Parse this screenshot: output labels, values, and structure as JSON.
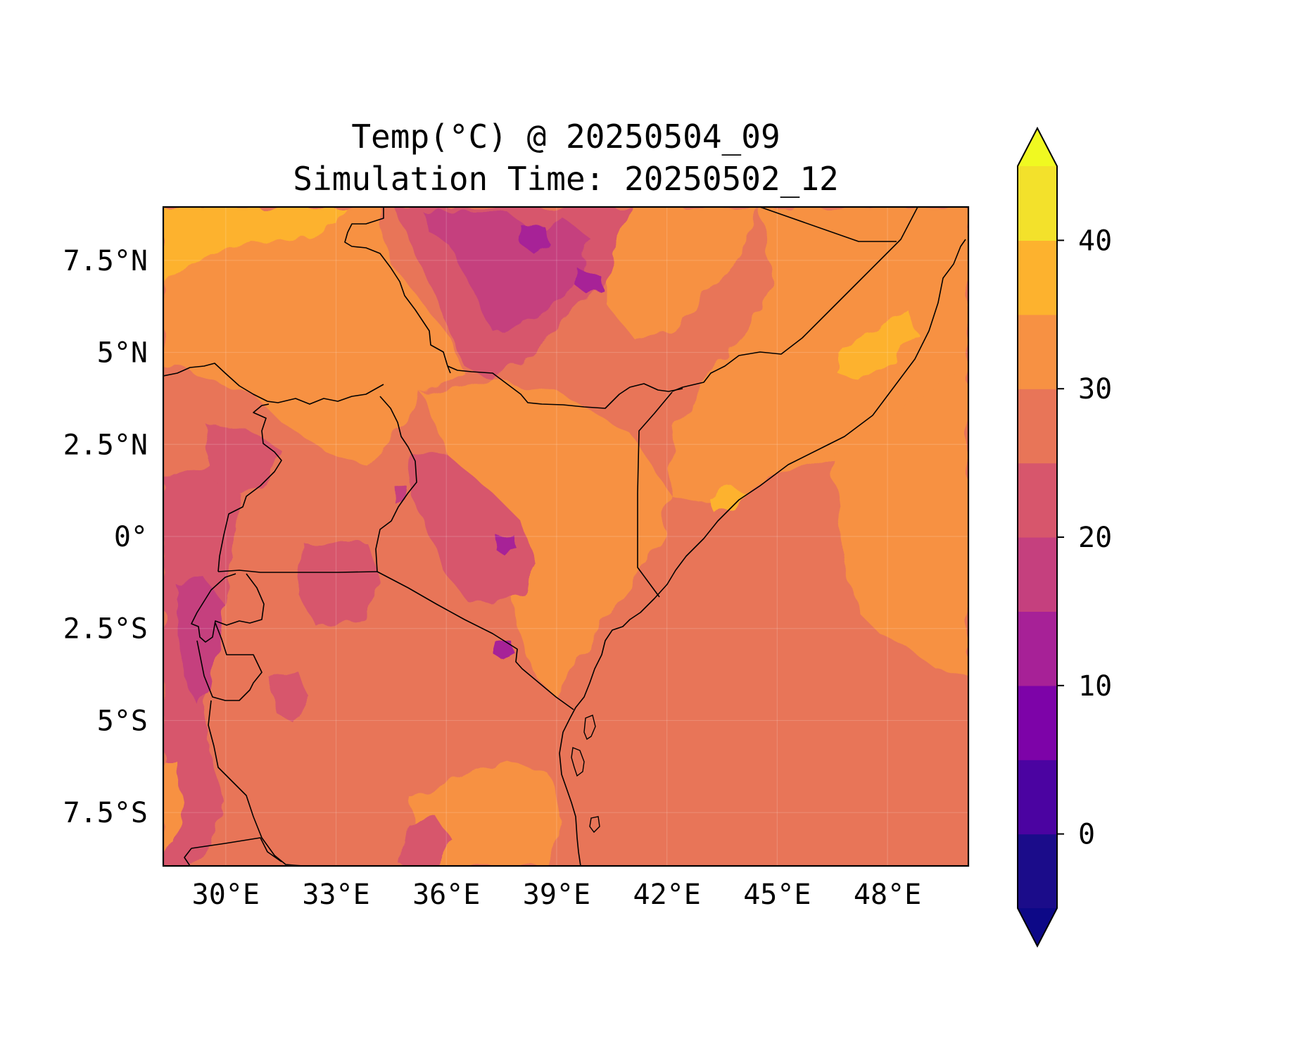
{
  "title_line1": "Temp(°C) @ 20250504_09",
  "title_line2": "Simulation Time: 20250502_12",
  "map": {
    "projection": "lat-lon",
    "extent": {
      "lon_min": 28.3,
      "lon_max": 50.2,
      "lat_min": -8.95,
      "lat_max": 8.95
    },
    "x_ticks": [
      {
        "value": 30,
        "label": "30°E"
      },
      {
        "value": 33,
        "label": "33°E"
      },
      {
        "value": 36,
        "label": "36°E"
      },
      {
        "value": 39,
        "label": "39°E"
      },
      {
        "value": 42,
        "label": "42°E"
      },
      {
        "value": 45,
        "label": "45°E"
      },
      {
        "value": 48,
        "label": "48°E"
      }
    ],
    "y_ticks": [
      {
        "value": 7.5,
        "label": "7.5°N"
      },
      {
        "value": 5,
        "label": "5°N"
      },
      {
        "value": 2.5,
        "label": "2.5°N"
      },
      {
        "value": 0,
        "label": "0°"
      },
      {
        "value": -2.5,
        "label": "2.5°S"
      },
      {
        "value": -5,
        "label": "5°S"
      },
      {
        "value": -7.5,
        "label": "7.5°S"
      }
    ],
    "gridlines": true,
    "background_temp_level": 27.5
  },
  "colorbar": {
    "levels": [
      -5,
      0,
      5,
      10,
      15,
      20,
      25,
      30,
      35,
      40,
      45
    ],
    "colors": [
      "#1b0c8a",
      "#4b03a1",
      "#7d03a8",
      "#a72197",
      "#c5407e",
      "#d7566c",
      "#e87558",
      "#f79143",
      "#fdb22e",
      "#f3e12b"
    ],
    "under_color": "#0d0887",
    "over_color": "#f0f921",
    "extend": "both",
    "ticks": [
      {
        "value": 0,
        "label": "0"
      },
      {
        "value": 10,
        "label": "10"
      },
      {
        "value": 20,
        "label": "20"
      },
      {
        "value": 30,
        "label": "30"
      },
      {
        "value": 40,
        "label": "40"
      }
    ]
  }
}
